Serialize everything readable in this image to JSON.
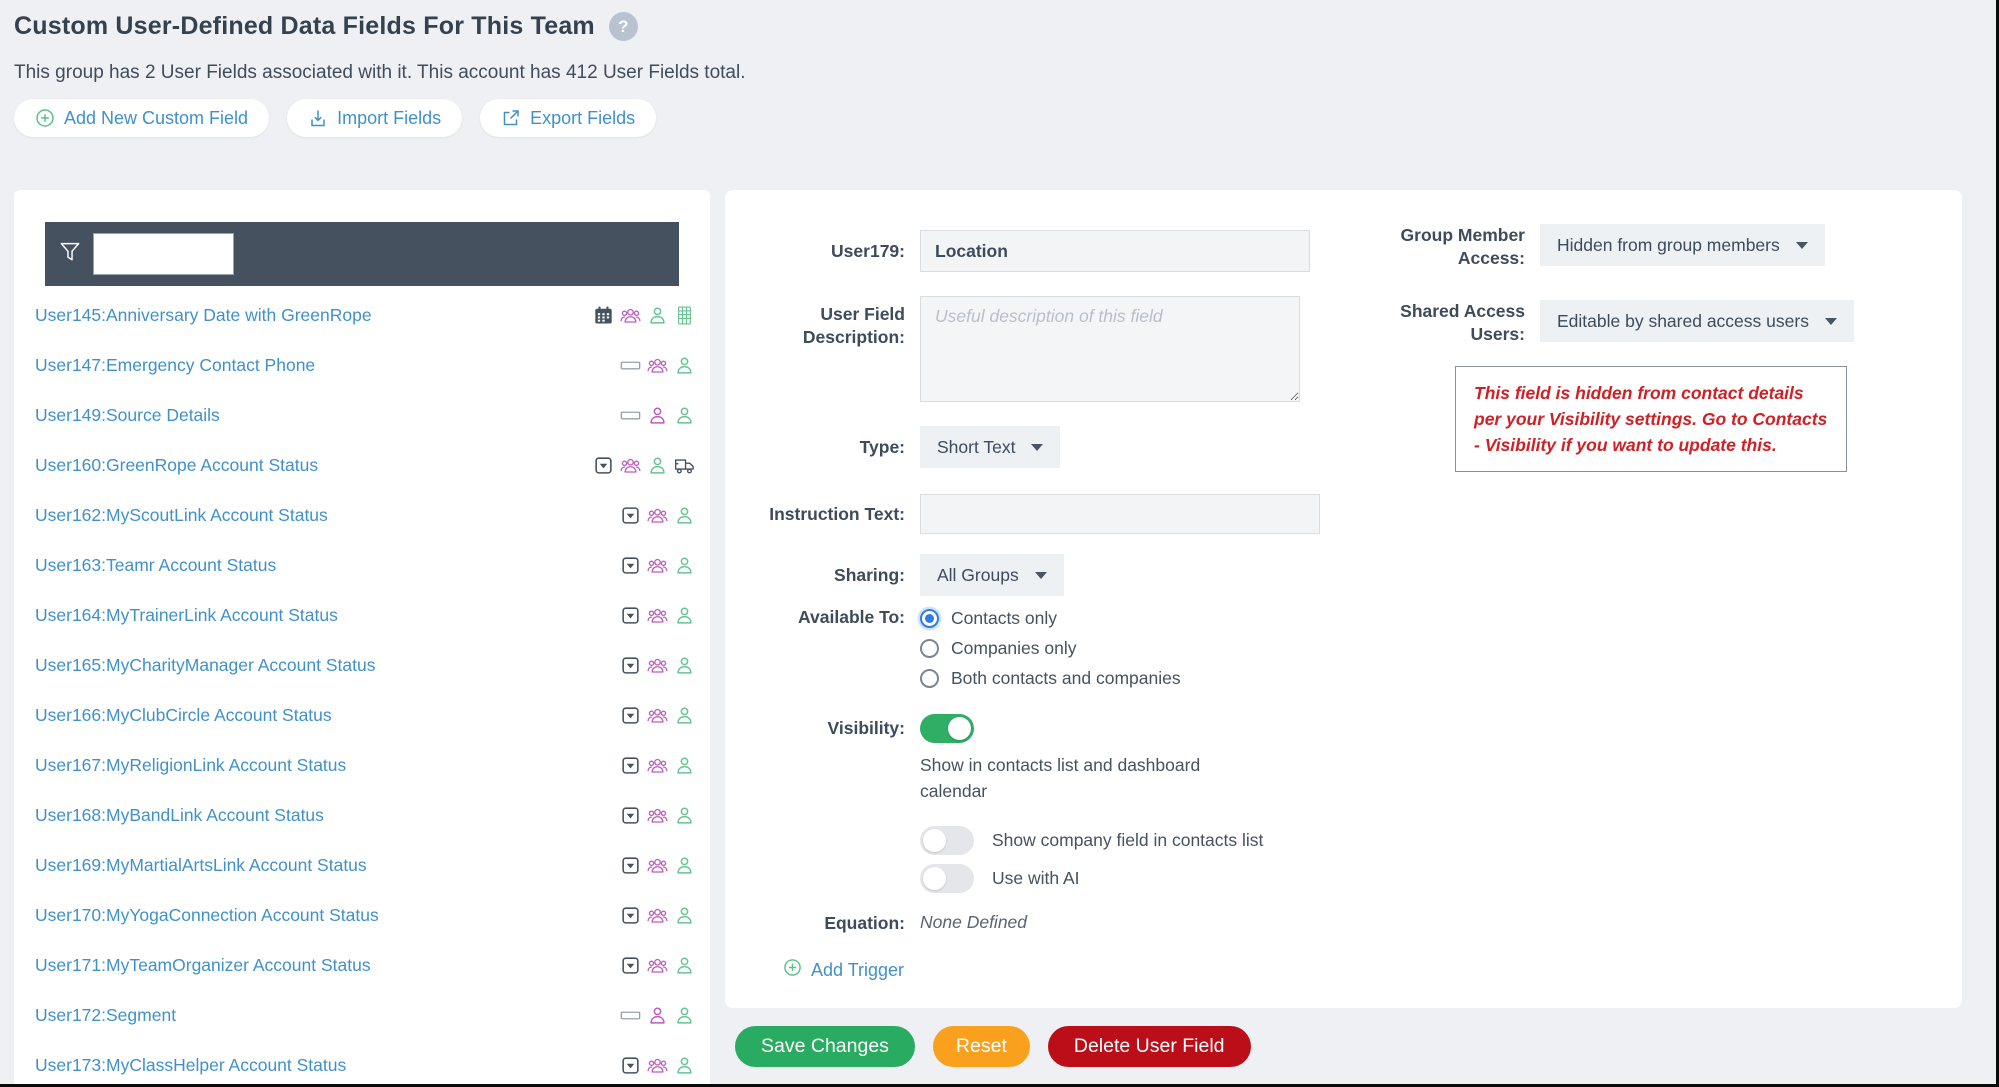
{
  "header": {
    "title": "Custom User-Defined Data Fields For This Team",
    "help_glyph": "?",
    "subtitle": "This group has 2 User Fields associated with it. This account has 412 User Fields total."
  },
  "toolbar": {
    "buttons": [
      {
        "label": "Add New Custom Field",
        "icon": "plus-circle-icon"
      },
      {
        "label": "Import Fields",
        "icon": "import-icon"
      },
      {
        "label": "Export Fields",
        "icon": "export-icon"
      }
    ]
  },
  "sidebar": {
    "filter_value": "",
    "items": [
      {
        "label": "User145:Anniversary Date with GreenRope",
        "icons": [
          {
            "name": "calendar-icon",
            "glyph": "calendar",
            "color": "#46525f"
          },
          {
            "name": "users-icon",
            "glyph": "users",
            "color": "#bd5bbd"
          },
          {
            "name": "user-icon",
            "glyph": "user",
            "color": "#67c393"
          },
          {
            "name": "grid-icon",
            "glyph": "grid",
            "color": "#67c393"
          }
        ]
      },
      {
        "label": "User147:Emergency Contact Phone",
        "icons": [
          {
            "name": "textbox-icon",
            "glyph": "textbox",
            "color": "#98a1aa"
          },
          {
            "name": "users-icon",
            "glyph": "users",
            "color": "#bd5bbd"
          },
          {
            "name": "user-icon",
            "glyph": "user",
            "color": "#67c393"
          }
        ]
      },
      {
        "label": "User149:Source Details",
        "icons": [
          {
            "name": "textbox-icon",
            "glyph": "textbox",
            "color": "#98a1aa"
          },
          {
            "name": "user-icon",
            "glyph": "user",
            "color": "#bd5bbd"
          },
          {
            "name": "user-icon",
            "glyph": "user",
            "color": "#67c393"
          }
        ]
      },
      {
        "label": "User160:GreenRope Account Status",
        "icons": [
          {
            "name": "dropdown-icon",
            "glyph": "dropdown",
            "color": "#46525f"
          },
          {
            "name": "users-icon",
            "glyph": "users",
            "color": "#bd5bbd"
          },
          {
            "name": "user-icon",
            "glyph": "user",
            "color": "#67c393"
          },
          {
            "name": "truck-icon",
            "glyph": "truck",
            "color": "#46525f"
          }
        ]
      },
      {
        "label": "User162:MyScoutLink Account Status",
        "icons": [
          {
            "name": "dropdown-icon",
            "glyph": "dropdown",
            "color": "#46525f"
          },
          {
            "name": "users-icon",
            "glyph": "users",
            "color": "#bd5bbd"
          },
          {
            "name": "user-icon",
            "glyph": "user",
            "color": "#67c393"
          }
        ]
      },
      {
        "label": "User163:Teamr Account Status",
        "icons": [
          {
            "name": "dropdown-icon",
            "glyph": "dropdown",
            "color": "#46525f"
          },
          {
            "name": "users-icon",
            "glyph": "users",
            "color": "#bd5bbd"
          },
          {
            "name": "user-icon",
            "glyph": "user",
            "color": "#67c393"
          }
        ]
      },
      {
        "label": "User164:MyTrainerLink Account Status",
        "icons": [
          {
            "name": "dropdown-icon",
            "glyph": "dropdown",
            "color": "#46525f"
          },
          {
            "name": "users-icon",
            "glyph": "users",
            "color": "#bd5bbd"
          },
          {
            "name": "user-icon",
            "glyph": "user",
            "color": "#67c393"
          }
        ]
      },
      {
        "label": "User165:MyCharityManager Account Status",
        "icons": [
          {
            "name": "dropdown-icon",
            "glyph": "dropdown",
            "color": "#46525f"
          },
          {
            "name": "users-icon",
            "glyph": "users",
            "color": "#bd5bbd"
          },
          {
            "name": "user-icon",
            "glyph": "user",
            "color": "#67c393"
          }
        ]
      },
      {
        "label": "User166:MyClubCircle Account Status",
        "icons": [
          {
            "name": "dropdown-icon",
            "glyph": "dropdown",
            "color": "#46525f"
          },
          {
            "name": "users-icon",
            "glyph": "users",
            "color": "#bd5bbd"
          },
          {
            "name": "user-icon",
            "glyph": "user",
            "color": "#67c393"
          }
        ]
      },
      {
        "label": "User167:MyReligionLink Account Status",
        "icons": [
          {
            "name": "dropdown-icon",
            "glyph": "dropdown",
            "color": "#46525f"
          },
          {
            "name": "users-icon",
            "glyph": "users",
            "color": "#bd5bbd"
          },
          {
            "name": "user-icon",
            "glyph": "user",
            "color": "#67c393"
          }
        ]
      },
      {
        "label": "User168:MyBandLink Account Status",
        "icons": [
          {
            "name": "dropdown-icon",
            "glyph": "dropdown",
            "color": "#46525f"
          },
          {
            "name": "users-icon",
            "glyph": "users",
            "color": "#bd5bbd"
          },
          {
            "name": "user-icon",
            "glyph": "user",
            "color": "#67c393"
          }
        ]
      },
      {
        "label": "User169:MyMartialArtsLink Account Status",
        "icons": [
          {
            "name": "dropdown-icon",
            "glyph": "dropdown",
            "color": "#46525f"
          },
          {
            "name": "users-icon",
            "glyph": "users",
            "color": "#bd5bbd"
          },
          {
            "name": "user-icon",
            "glyph": "user",
            "color": "#67c393"
          }
        ]
      },
      {
        "label": "User170:MyYogaConnection Account Status",
        "icons": [
          {
            "name": "dropdown-icon",
            "glyph": "dropdown",
            "color": "#46525f"
          },
          {
            "name": "users-icon",
            "glyph": "users",
            "color": "#bd5bbd"
          },
          {
            "name": "user-icon",
            "glyph": "user",
            "color": "#67c393"
          }
        ]
      },
      {
        "label": "User171:MyTeamOrganizer Account Status",
        "icons": [
          {
            "name": "dropdown-icon",
            "glyph": "dropdown",
            "color": "#46525f"
          },
          {
            "name": "users-icon",
            "glyph": "users",
            "color": "#bd5bbd"
          },
          {
            "name": "user-icon",
            "glyph": "user",
            "color": "#67c393"
          }
        ]
      },
      {
        "label": "User172:Segment",
        "icons": [
          {
            "name": "textbox-icon",
            "glyph": "textbox",
            "color": "#98a1aa"
          },
          {
            "name": "user-icon",
            "glyph": "user",
            "color": "#bd5bbd"
          },
          {
            "name": "user-icon",
            "glyph": "user",
            "color": "#67c393"
          }
        ]
      },
      {
        "label": "User173:MyClassHelper Account Status",
        "icons": [
          {
            "name": "dropdown-icon",
            "glyph": "dropdown",
            "color": "#46525f"
          },
          {
            "name": "users-icon",
            "glyph": "users",
            "color": "#bd5bbd"
          },
          {
            "name": "user-icon",
            "glyph": "user",
            "color": "#67c393"
          }
        ]
      }
    ]
  },
  "form": {
    "name_label": "User179:",
    "name_value": "Location",
    "description_label": "User Field Description:",
    "description_placeholder": "Useful description of this field",
    "description_value": "",
    "type_label": "Type:",
    "type_value": "Short Text",
    "instruction_label": "Instruction Text:",
    "instruction_value": "",
    "sharing_label": "Sharing:",
    "sharing_value": "All Groups",
    "available_label": "Available To:",
    "available_options": [
      {
        "label": "Contacts only",
        "selected": true
      },
      {
        "label": "Companies only",
        "selected": false
      },
      {
        "label": "Both contacts and companies",
        "selected": false
      }
    ],
    "visibility_label": "Visibility:",
    "visibility_on": true,
    "visibility_note": "Show in contacts list and dashboard calendar",
    "toggles": [
      {
        "label": "Show company field in contacts list",
        "on": false
      },
      {
        "label": "Use with AI",
        "on": false
      }
    ],
    "equation_label": "Equation:",
    "equation_value": "None Defined",
    "add_trigger_label": "Add Trigger"
  },
  "access": {
    "group_member_label": "Group Member Access:",
    "group_member_value": "Hidden from group members",
    "shared_label": "Shared Access Users:",
    "shared_value": "Editable by shared access users",
    "warning": "This field is hidden from contact details per your Visibility settings. Go to Contacts - Visibility if you want to update this."
  },
  "actions": {
    "save": "Save Changes",
    "reset": "Reset",
    "delete": "Delete User Field"
  },
  "colors": {
    "accent_blue": "#4191c9",
    "icon_pink": "#bd5bbd",
    "icon_green": "#67c393",
    "icon_dark": "#46525f",
    "toggle_on": "#2fae66",
    "radio_selected": "#2f7de1",
    "warning_red": "#cf2026",
    "save_green": "#2aab62",
    "reset_orange": "#f9a11d",
    "delete_red": "#bb0e18",
    "filter_bar": "#46515f"
  }
}
